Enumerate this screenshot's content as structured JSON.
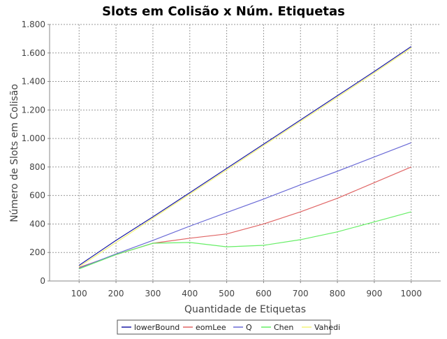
{
  "chart_data": {
    "type": "line",
    "title": "Slots em Colisão x Núm. Etiquetas",
    "xlabel": "Quantidade de Etiquetas",
    "ylabel": "Número de Slots em Colisão",
    "x": [
      100,
      200,
      300,
      400,
      500,
      600,
      700,
      800,
      900,
      1000
    ],
    "xlim": [
      20,
      1080
    ],
    "ylim": [
      0,
      1800
    ],
    "x_ticks": [
      "100",
      "200",
      "300",
      "400",
      "500",
      "600",
      "700",
      "800",
      "900",
      "1000"
    ],
    "y_ticks": [
      {
        "value": 0,
        "label": "0"
      },
      {
        "value": 200,
        "label": "200"
      },
      {
        "value": 400,
        "label": "400"
      },
      {
        "value": 600,
        "label": "600"
      },
      {
        "value": 800,
        "label": "800"
      },
      {
        "value": 1000,
        "label": "1.000"
      },
      {
        "value": 1200,
        "label": "1.200"
      },
      {
        "value": 1400,
        "label": "1.400"
      },
      {
        "value": 1600,
        "label": "1.600"
      },
      {
        "value": 1800,
        "label": "1.800"
      }
    ],
    "grid": true,
    "legend_position": "bottom",
    "series": [
      {
        "name": "lowerBound",
        "color": "#1a1aa6",
        "values": [
          110,
          285,
          450,
          620,
          790,
          960,
          1130,
          1300,
          1470,
          1645
        ]
      },
      {
        "name": "eomLee",
        "color": "#e06666",
        "values": [
          95,
          185,
          265,
          300,
          330,
          400,
          485,
          580,
          690,
          800
        ]
      },
      {
        "name": "Q",
        "color": "#6a6ad6",
        "values": [
          90,
          190,
          285,
          385,
          480,
          575,
          675,
          770,
          870,
          970
        ]
      },
      {
        "name": "Chen",
        "color": "#66ee66",
        "values": [
          85,
          185,
          265,
          270,
          240,
          250,
          290,
          345,
          415,
          485
        ]
      },
      {
        "name": "Vahedi",
        "color": "#f2f27a",
        "values": [
          100,
          270,
          440,
          610,
          780,
          950,
          1120,
          1290,
          1460,
          1635
        ]
      }
    ]
  }
}
